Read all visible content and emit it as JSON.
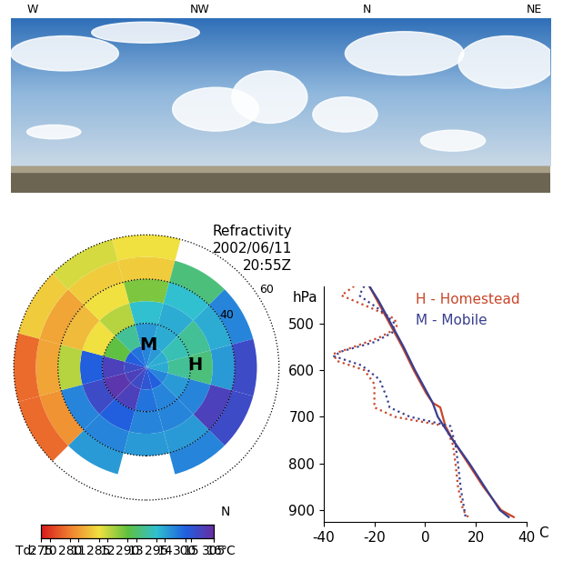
{
  "photo": {
    "directions": [
      "W",
      "NW",
      "N",
      "NE"
    ]
  },
  "chart_data": [
    {
      "type": "polar_heatmap",
      "title": "Refractivity",
      "annotations": [
        "2002/06/11",
        "20:55Z"
      ],
      "tick_labels": false,
      "xlim": [
        -66,
        66
      ],
      "ylim": [
        -66,
        66
      ],
      "azimuths": [
        0,
        30,
        60,
        90,
        120,
        150,
        180,
        210,
        240,
        270,
        300,
        330
      ],
      "range_edges": [
        0,
        10,
        20,
        30,
        40,
        50,
        60
      ],
      "cells": [
        [
          298,
          297,
          295,
          289,
          284,
          285
        ],
        [
          297,
          296,
          296,
          295,
          292,
          null
        ],
        [
          296,
          294,
          293,
          296,
          298,
          null
        ],
        [
          296,
          293,
          292,
          297,
          302,
          null
        ],
        [
          298,
          297,
          298,
          303,
          302,
          null
        ],
        [
          300,
          298,
          298,
          297,
          298,
          null
        ],
        [
          301,
          299,
          298,
          297,
          null,
          null
        ],
        [
          302,
          303,
          300,
          298,
          297,
          null
        ],
        [
          303,
          304,
          302,
          298,
          281,
          279
        ],
        [
          302,
          303,
          300,
          287,
          282,
          279
        ],
        [
          300,
          290,
          285,
          283,
          282,
          284
        ],
        [
          299,
          293,
          287,
          285,
          284,
          286
        ]
      ],
      "range_rings": [
        20,
        40,
        60
      ],
      "ring_labels": [
        40,
        60
      ],
      "sites": [
        {
          "label": "M",
          "x": 1,
          "y": 10
        },
        {
          "label": "H",
          "x": 22,
          "y": 1
        }
      ],
      "colorbar": {
        "range": [
          275,
          305
        ],
        "ticks": [
          275,
          280,
          285,
          290,
          295,
          300,
          305
        ],
        "label": "N",
        "td_label": "Td:",
        "td_unit": "°C",
        "td_ticks": [
          {
            "value": 276.5,
            "label": "10"
          },
          {
            "value": 281.5,
            "label": "11"
          },
          {
            "value": 286.5,
            "label": "12"
          },
          {
            "value": 291.5,
            "label": "13"
          },
          {
            "value": 296.5,
            "label": "14"
          },
          {
            "value": 301,
            "label": "15"
          },
          {
            "value": 305,
            "label": "16"
          }
        ]
      }
    },
    {
      "type": "line",
      "xlim": [
        -40,
        40
      ],
      "xticks": [
        -40,
        -20,
        0,
        20,
        40
      ],
      "ylim": [
        925,
        420
      ],
      "yticks": [
        500,
        600,
        700,
        800,
        900
      ],
      "ylabel": "hPa",
      "xlabel": "C",
      "legend": "upper right",
      "series": [
        {
          "name": "H - Homestead",
          "color": "#c8462a",
          "profiles": [
            {
              "line_style": "solid",
              "pressure": [
                420,
                450,
                500,
                550,
                600,
                650,
                670,
                680,
                700,
                720,
                750,
                800,
                850,
                900,
                915
              ],
              "values": [
                -22,
                -19,
                -14,
                -9,
                -4.5,
                0.5,
                3,
                6,
                7,
                8,
                11,
                17,
                23,
                30,
                35
              ]
            },
            {
              "line_style": "dotted",
              "pressure": [
                420,
                440,
                470,
                490,
                510,
                530,
                550,
                565,
                580,
                600,
                630,
                680,
                700,
                720,
                760,
                800,
                850,
                900,
                915
              ],
              "values": [
                -28,
                -33,
                -20,
                -12,
                -11,
                -18,
                -28,
                -36,
                -35,
                -24,
                -20,
                -20,
                -12,
                8,
                11,
                12,
                13,
                15,
                17
              ]
            }
          ]
        },
        {
          "name": "M - Mobile",
          "color": "#3a3f8f",
          "profiles": [
            {
              "line_style": "solid",
              "pressure": [
                420,
                450,
                500,
                550,
                600,
                650,
                670,
                700,
                750,
                800,
                850,
                900,
                915
              ],
              "values": [
                -22,
                -18.5,
                -13.5,
                -8.5,
                -4,
                1,
                3,
                5,
                11,
                17.5,
                23.5,
                29.5,
                33
              ]
            },
            {
              "line_style": "dotted",
              "pressure": [
                420,
                440,
                470,
                500,
                520,
                540,
                560,
                570,
                590,
                620,
                660,
                680,
                700,
                720,
                760,
                800,
                850,
                900,
                915
              ],
              "values": [
                -24,
                -26,
                -18,
                -12,
                -13,
                -20,
                -33,
                -36,
                -25,
                -18,
                -15,
                -14,
                -6,
                10,
                12,
                13,
                14,
                15.5,
                16
              ]
            }
          ]
        }
      ]
    }
  ]
}
